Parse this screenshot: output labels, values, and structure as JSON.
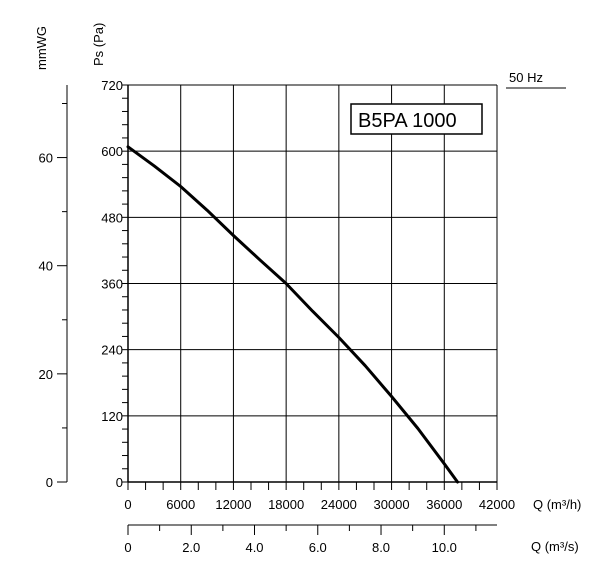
{
  "chart_data": {
    "type": "line",
    "model_label": "B5PA 1000",
    "frequency_label": "50 Hz",
    "axes": {
      "left_pa": {
        "label": "Ps (Pa)",
        "ticks": [
          "0",
          "120",
          "240",
          "360",
          "480",
          "600",
          "720"
        ],
        "range": [
          0,
          720
        ]
      },
      "left_mmwg": {
        "label": "mmWG",
        "ticks": [
          "0",
          "20",
          "40",
          "60"
        ],
        "range": [
          0,
          73.42
        ]
      },
      "bottom_m3h": {
        "label": "Q (m³/h)",
        "ticks": [
          "0",
          "6000",
          "12000",
          "18000",
          "24000",
          "30000",
          "36000",
          "42000"
        ],
        "range": [
          0,
          42000
        ]
      },
      "bottom_m3s": {
        "label": "Q (m³/s)",
        "ticks": [
          "0",
          "2.0",
          "4.0",
          "6.0",
          "8.0",
          "10.0"
        ],
        "range": [
          0,
          11.667
        ]
      }
    },
    "series": [
      {
        "x": [
          0,
          3000,
          6000,
          9000,
          12000,
          15000,
          18000,
          21000,
          24000,
          27000,
          30000,
          33000,
          36000,
          37500
        ],
        "y": [
          608,
          573,
          536,
          493,
          447,
          403,
          360,
          310,
          262,
          211,
          155,
          97,
          33,
          0
        ]
      }
    ],
    "grid": true
  }
}
